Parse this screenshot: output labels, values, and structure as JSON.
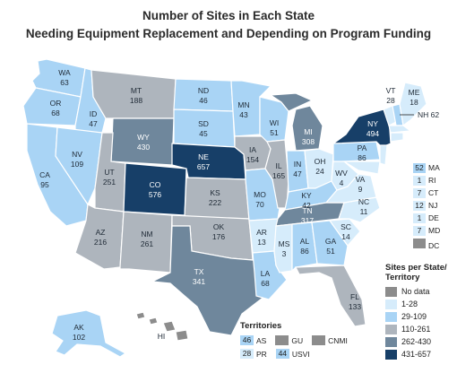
{
  "title_line1": "Number of Sites in Each State",
  "title_line2": "Needing Equipment Replacement and Depending on Program Funding",
  "colors": {
    "nodata": "#8c8c8c",
    "c1": "#d6ecfb",
    "c2": "#a9d4f5",
    "c3": "#aeb5bd",
    "c4": "#6f879c",
    "c5": "#173f68",
    "border": "#ffffff"
  },
  "states": {
    "WA": {
      "abbr": "WA",
      "value": "63",
      "cls": "c2"
    },
    "OR": {
      "abbr": "OR",
      "value": "68",
      "cls": "c2"
    },
    "CA": {
      "abbr": "CA",
      "value": "95",
      "cls": "c2"
    },
    "ID": {
      "abbr": "ID",
      "value": "47",
      "cls": "c2"
    },
    "NV": {
      "abbr": "NV",
      "value": "109",
      "cls": "c2"
    },
    "MT": {
      "abbr": "MT",
      "value": "188",
      "cls": "c3"
    },
    "WY": {
      "abbr": "WY",
      "value": "430",
      "cls": "c4"
    },
    "UT": {
      "abbr": "UT",
      "value": "251",
      "cls": "c3"
    },
    "AZ": {
      "abbr": "AZ",
      "value": "216",
      "cls": "c3"
    },
    "CO": {
      "abbr": "CO",
      "value": "576",
      "cls": "c5"
    },
    "NM": {
      "abbr": "NM",
      "value": "261",
      "cls": "c3"
    },
    "ND": {
      "abbr": "ND",
      "value": "46",
      "cls": "c2"
    },
    "SD": {
      "abbr": "SD",
      "value": "45",
      "cls": "c2"
    },
    "NE": {
      "abbr": "NE",
      "value": "657",
      "cls": "c5"
    },
    "KS": {
      "abbr": "KS",
      "value": "222",
      "cls": "c3"
    },
    "OK": {
      "abbr": "OK",
      "value": "176",
      "cls": "c3"
    },
    "TX": {
      "abbr": "TX",
      "value": "341",
      "cls": "c4"
    },
    "MN": {
      "abbr": "MN",
      "value": "43",
      "cls": "c2"
    },
    "IA": {
      "abbr": "IA",
      "value": "154",
      "cls": "c3"
    },
    "MO": {
      "abbr": "MO",
      "value": "70",
      "cls": "c2"
    },
    "AR": {
      "abbr": "AR",
      "value": "13",
      "cls": "c1"
    },
    "LA": {
      "abbr": "LA",
      "value": "68",
      "cls": "c2"
    },
    "WI": {
      "abbr": "WI",
      "value": "51",
      "cls": "c2"
    },
    "IL": {
      "abbr": "IL",
      "value": "165",
      "cls": "c3"
    },
    "MI": {
      "abbr": "MI",
      "value": "308",
      "cls": "c4"
    },
    "IN": {
      "abbr": "IN",
      "value": "47",
      "cls": "c2"
    },
    "OH": {
      "abbr": "OH",
      "value": "24",
      "cls": "c1"
    },
    "KY": {
      "abbr": "KY",
      "value": "42",
      "cls": "c2"
    },
    "TN": {
      "abbr": "TN",
      "value": "317",
      "cls": "c4"
    },
    "MS": {
      "abbr": "MS",
      "value": "3",
      "cls": "c1"
    },
    "AL": {
      "abbr": "AL",
      "value": "86",
      "cls": "c2"
    },
    "GA": {
      "abbr": "GA",
      "value": "51",
      "cls": "c2"
    },
    "FL": {
      "abbr": "FL",
      "value": "133",
      "cls": "c3"
    },
    "SC": {
      "abbr": "SC",
      "value": "14",
      "cls": "c1"
    },
    "NC": {
      "abbr": "NC",
      "value": "11",
      "cls": "c1"
    },
    "VA": {
      "abbr": "VA",
      "value": "9",
      "cls": "c1"
    },
    "WV": {
      "abbr": "WV",
      "value": "4",
      "cls": "c1"
    },
    "PA": {
      "abbr": "PA",
      "value": "86",
      "cls": "c2"
    },
    "NY": {
      "abbr": "NY",
      "value": "494",
      "cls": "c5"
    },
    "VT": {
      "abbr": "VT",
      "value": "28",
      "cls": "c1"
    },
    "ME": {
      "abbr": "ME",
      "value": "18",
      "cls": "c1"
    },
    "NH": {
      "abbr": "NH",
      "value": "62",
      "cls": "c2"
    },
    "AK": {
      "abbr": "AK",
      "value": "102",
      "cls": "c2"
    },
    "HI": {
      "abbr": "HI",
      "value": "",
      "cls": "nodata"
    }
  },
  "small_states": [
    {
      "value": "52",
      "abbr": "MA",
      "cls": "c2"
    },
    {
      "value": "1",
      "abbr": "RI",
      "cls": "c1"
    },
    {
      "value": "7",
      "abbr": "CT",
      "cls": "c1"
    },
    {
      "value": "12",
      "abbr": "NJ",
      "cls": "c1"
    },
    {
      "value": "1",
      "abbr": "DE",
      "cls": "c1"
    },
    {
      "value": "7",
      "abbr": "MD",
      "cls": "c1"
    },
    {
      "value": "",
      "abbr": "DC",
      "cls": "nodata"
    }
  ],
  "legend": {
    "title": "Sites per State/ Territory",
    "items": [
      {
        "label": "No data",
        "cls": "nodata"
      },
      {
        "label": "1-28",
        "cls": "c1"
      },
      {
        "label": "29-109",
        "cls": "c2"
      },
      {
        "label": "110-261",
        "cls": "c3"
      },
      {
        "label": "262-430",
        "cls": "c4"
      },
      {
        "label": "431-657",
        "cls": "c5"
      }
    ]
  },
  "territories": {
    "title": "Territories",
    "row1": [
      {
        "value": "46",
        "abbr": "AS",
        "cls": "c2"
      },
      {
        "value": "",
        "abbr": "GU",
        "cls": "nodata"
      },
      {
        "value": "",
        "abbr": "CNMI",
        "cls": "nodata"
      }
    ],
    "row2": [
      {
        "value": "28",
        "abbr": "PR",
        "cls": "c1"
      },
      {
        "value": "44",
        "abbr": "USVI",
        "cls": "c2"
      }
    ]
  }
}
